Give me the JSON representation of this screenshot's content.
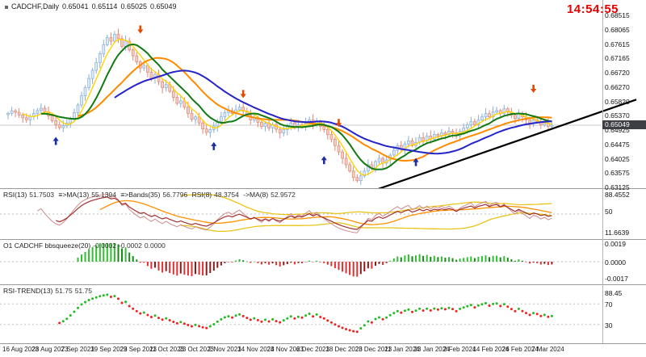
{
  "header": {
    "symbol": "CADCHF,Daily",
    "open": "0.65041",
    "high": "0.65114",
    "low": "0.65025",
    "close": "0.65049"
  },
  "clock": "14:54:55",
  "price_axis_labels": [
    "0.68515",
    "0.68065",
    "0.67615",
    "0.67165",
    "0.66720",
    "0.66270",
    "0.65820",
    "0.65370",
    "0.64925",
    "0.64475",
    "0.64025",
    "0.63575",
    "0.63125"
  ],
  "date_axis_labels": [
    "16 Aug 2023",
    "28 Aug 2023",
    "7 Sep 2023",
    "19 Sep 2023",
    "29 Sep 2023",
    "11 Oct 2023",
    "23 Oct 2023",
    "2 Nov 2023",
    "14 Nov 2023",
    "24 Nov 2023",
    "6 Dec 2023",
    "18 Dec 2023",
    "28 Dec 2023",
    "11 Jan 2024",
    "23 Jan 2024",
    "2 Feb 2024",
    "14 Feb 2024",
    "26 Feb 2024",
    "7 Mar 2024"
  ],
  "panels": {
    "rsi": {
      "header": [
        {
          "label": "RSI(13)",
          "value": "51.7503"
        },
        {
          "label": "≡>MA(13)",
          "value": "55.1394"
        },
        {
          "label": "≡>Bands(35)",
          "value": "56.7796"
        },
        {
          "label": "RSI(8)",
          "value": "48.3754"
        },
        {
          "label": "->MA(8)",
          "value": "52.9572"
        }
      ],
      "axis_labels": [
        "88.4552",
        "50",
        "11.6639"
      ]
    },
    "squeeze": {
      "title": "O1 CADCHF bbsqueeze(20)",
      "values": [
        "-0.0002",
        "-0.0002",
        "0.0000"
      ],
      "axis_labels": [
        "0.0019",
        "0.0000",
        "-0.0017"
      ]
    },
    "trend": {
      "title": "RSI-TREND(13)",
      "values": [
        "51.75",
        "51.75"
      ],
      "axis_labels": [
        "88.45",
        "70",
        "30"
      ]
    }
  },
  "chart_data": {
    "type": "candlestick",
    "symbol": "CADCHF",
    "timeframe": "Daily",
    "title": "CADCHF,Daily",
    "price_axis": {
      "max": 0.68515,
      "min": 0.63125
    },
    "current_price": "0.65049",
    "label_every_n_bars": 8,
    "first_open": 0.6538,
    "wick_base": 0.0013,
    "closes": [
      0.6542,
      0.655,
      0.6545,
      0.6537,
      0.6528,
      0.6522,
      0.6532,
      0.6541,
      0.6551,
      0.6558,
      0.6547,
      0.6534,
      0.6519,
      0.6506,
      0.6497,
      0.6503,
      0.6512,
      0.6526,
      0.6544,
      0.6568,
      0.6597,
      0.6623,
      0.6651,
      0.6677,
      0.6701,
      0.6729,
      0.6757,
      0.6779,
      0.6768,
      0.679,
      0.6776,
      0.6752,
      0.6768,
      0.6741,
      0.6722,
      0.6703,
      0.6684,
      0.6692,
      0.6671,
      0.6652,
      0.6664,
      0.6641,
      0.6622,
      0.6632,
      0.6611,
      0.6592,
      0.6573,
      0.6581,
      0.6561,
      0.6542,
      0.6523,
      0.6531,
      0.6512,
      0.6493,
      0.6482,
      0.6491,
      0.6502,
      0.6517,
      0.6531,
      0.6544,
      0.6551,
      0.6541,
      0.6553,
      0.6561,
      0.6549,
      0.6536,
      0.6521,
      0.6529,
      0.6514,
      0.6501,
      0.6511,
      0.6496,
      0.6507,
      0.6492,
      0.6481,
      0.6491,
      0.6501,
      0.6512,
      0.6497,
      0.6506,
      0.6501,
      0.6511,
      0.6521,
      0.6506,
      0.6516,
      0.6501,
      0.6491,
      0.6476,
      0.6461,
      0.6441,
      0.6421,
      0.6401,
      0.6381,
      0.6361,
      0.6341,
      0.6331,
      0.6346,
      0.6361,
      0.6381,
      0.6371,
      0.6391,
      0.6401,
      0.6386,
      0.6396,
      0.6411,
      0.6426,
      0.6441,
      0.6431,
      0.6446,
      0.6456,
      0.6441,
      0.6451,
      0.6466,
      0.6456,
      0.6471,
      0.6461,
      0.6476,
      0.6471,
      0.6481,
      0.6476,
      0.6486,
      0.6481,
      0.6471,
      0.6486,
      0.6496,
      0.6506,
      0.6516,
      0.6506,
      0.6521,
      0.6531,
      0.6541,
      0.6531,
      0.6546,
      0.6551,
      0.6541,
      0.6556,
      0.6546,
      0.6536,
      0.6526,
      0.6541,
      0.6531,
      0.6521,
      0.6511,
      0.6521,
      0.6516,
      0.6506,
      0.6511,
      0.6501,
      0.65049
    ],
    "overlays": [
      {
        "name": "ma-yellow",
        "period": 5,
        "color": "#ffd400",
        "width": 1.4
      },
      {
        "name": "ma-orange",
        "period": 20,
        "color": "#ff8a00",
        "width": 2
      },
      {
        "name": "ma-green",
        "period": 10,
        "color": "#117a11",
        "width": 2
      },
      {
        "name": "ma-blue",
        "period": 30,
        "color": "#2424c8",
        "width": 2
      }
    ],
    "colors": {
      "bull_fill": "#dcebf8",
      "bull_border": "#88aed4",
      "bear_fill": "#f6cdc2",
      "bear_border": "#dd8874",
      "arrow_up": "#1c2f9e",
      "arrow_down": "#e04a00",
      "trendline": "#000000"
    },
    "arrows": {
      "up": [
        {
          "bar": 13,
          "price": 0.6468
        },
        {
          "bar": 56,
          "price": 0.6452
        },
        {
          "bar": 86,
          "price": 0.6408
        },
        {
          "bar": 111,
          "price": 0.6402
        }
      ],
      "down": [
        {
          "bar": 36,
          "price": 0.6792
        },
        {
          "bar": 64,
          "price": 0.659
        },
        {
          "bar": 90,
          "price": 0.6499
        },
        {
          "bar": 143,
          "price": 0.6606
        }
      ]
    },
    "trendline": {
      "b1": 97,
      "p1": 0.629,
      "b2": 171,
      "p2": 0.6585
    },
    "subpanels": {
      "rsi": {
        "level": 50,
        "range": [
          0,
          100
        ]
      },
      "squeeze": {
        "scale": 0.12,
        "max": 0.0019,
        "min": -0.0017
      },
      "trend": {
        "levels": [
          70,
          30
        ],
        "range": [
          0,
          100
        ]
      }
    }
  }
}
